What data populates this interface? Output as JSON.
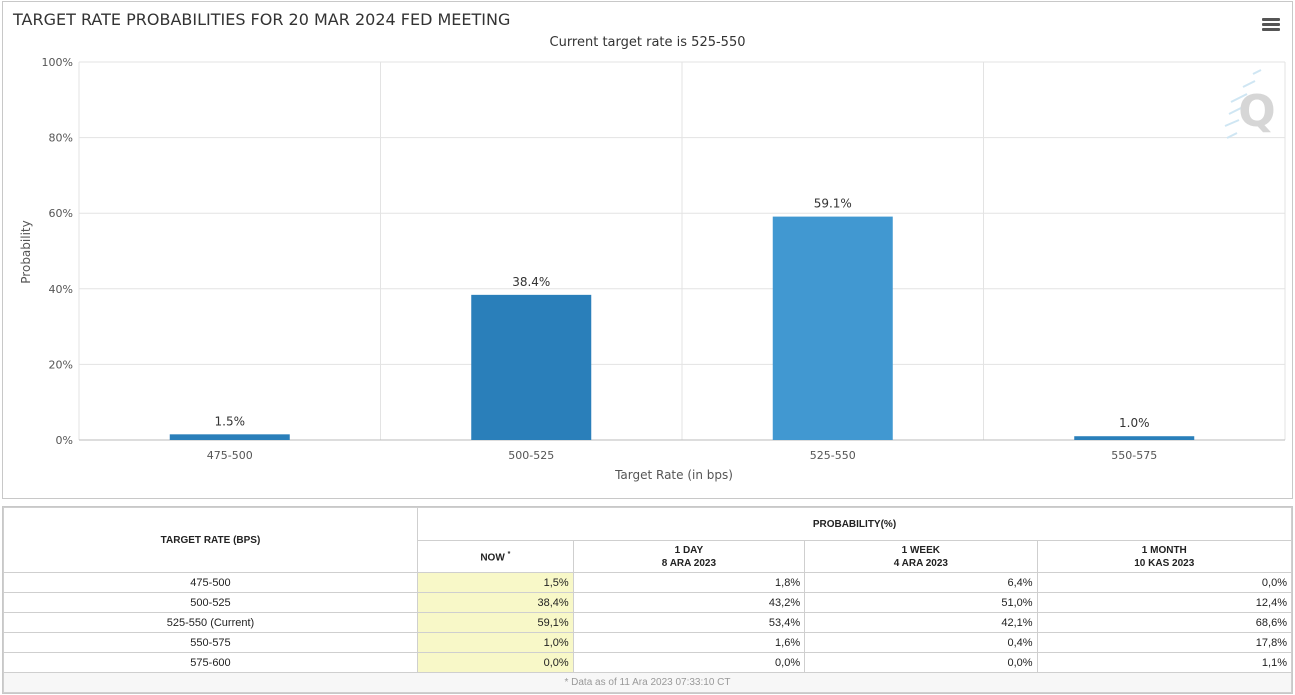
{
  "chart": {
    "title": "TARGET RATE PROBABILITIES FOR 20 MAR 2024 FED MEETING",
    "subtitle": "Current target rate is 525-550",
    "menu_icon": "hamburger-icon",
    "watermark_letter": "Q"
  },
  "chart_data": {
    "type": "bar",
    "title": "TARGET RATE PROBABILITIES FOR 20 MAR 2024 FED MEETING",
    "subtitle": "Current target rate is 525-550",
    "categories": [
      "475-500",
      "500-525",
      "525-550",
      "550-575"
    ],
    "values": [
      1.5,
      38.4,
      59.1,
      1.0
    ],
    "data_labels": [
      "1.5%",
      "38.4%",
      "59.1%",
      "1.0%"
    ],
    "bar_colors": [
      "#2a7fba",
      "#2a7fba",
      "#4198d1",
      "#2a7fba"
    ],
    "xlabel": "Target Rate (in bps)",
    "ylabel": "Probability",
    "ylim": [
      0,
      100
    ],
    "yticks": [
      0,
      20,
      40,
      60,
      80,
      100
    ],
    "ytick_labels": [
      "0%",
      "20%",
      "40%",
      "60%",
      "80%",
      "100%"
    ],
    "grid": true
  },
  "table": {
    "col_rate_header": "TARGET RATE (BPS)",
    "probability_header": "PROBABILITY(%)",
    "now_header": "NOW",
    "now_marker": "*",
    "day_header": "1 DAY",
    "day_date": "8 ARA 2023",
    "week_header": "1 WEEK",
    "week_date": "4 ARA 2023",
    "month_header": "1 MONTH",
    "month_date": "10 KAS 2023",
    "rows": [
      {
        "rate": "475-500",
        "now": "1,5%",
        "day": "1,8%",
        "week": "6,4%",
        "month": "0,0%"
      },
      {
        "rate": "500-525",
        "now": "38,4%",
        "day": "43,2%",
        "week": "51,0%",
        "month": "12,4%"
      },
      {
        "rate": "525-550 (Current)",
        "now": "59,1%",
        "day": "53,4%",
        "week": "42,1%",
        "month": "68,6%"
      },
      {
        "rate": "550-575",
        "now": "1,0%",
        "day": "1,6%",
        "week": "0,4%",
        "month": "17,8%"
      },
      {
        "rate": "575-600",
        "now": "0,0%",
        "day": "0,0%",
        "week": "0,0%",
        "month": "1,1%"
      }
    ],
    "footer": "* Data as of 11 Ara 2023 07:33:10 CT"
  }
}
